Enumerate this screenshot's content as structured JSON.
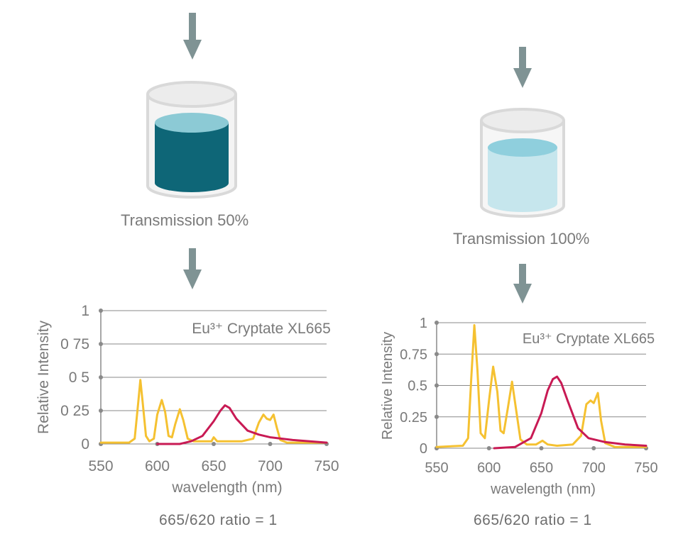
{
  "colors": {
    "arrow": "#7f9394",
    "cup_outline": "#d9d9d9",
    "cup_rim": "#ececec",
    "dark_liquid": "#0e6677",
    "dark_liquid_top": "#8ccad5",
    "light_liquid": "#c6e6ed",
    "light_liquid_top": "#8fcfdd",
    "donor": "#f5c131",
    "acceptor": "#c81a54",
    "grid": "#8a8a8a",
    "text": "#7a7a7a"
  },
  "icons": [
    "down-arrow-icon",
    "beaker-icon"
  ],
  "panels": [
    {
      "transmission_label": "Transmission 50%",
      "liquid_level": 0.78,
      "ratio_label": "665/620 ratio = 1",
      "chart_legend": "Eu³⁺ Cryptate XL665"
    },
    {
      "transmission_label": "Transmission 100%",
      "liquid_level": 0.78,
      "ratio_label": "665/620 ratio = 1",
      "chart_legend": "Eu³⁺ Cryptate XL665"
    }
  ],
  "chart_data": [
    {
      "type": "line",
      "ylabel": "Relative Intensity",
      "xlabel": "wavelength (nm)",
      "annotation": "Eu³⁺ Cryptate XL665",
      "xlim": [
        550,
        750
      ],
      "ylim": [
        0,
        1
      ],
      "x_ticks": [
        "550",
        "600",
        "650",
        "700",
        "750"
      ],
      "y_ticks": [
        "0",
        "0 25",
        "0 5",
        "0 75",
        "1"
      ],
      "grid": true,
      "series": [
        {
          "color": "#f5c131",
          "points": [
            [
              550,
              0.01
            ],
            [
              575,
              0.01
            ],
            [
              580,
              0.04
            ],
            [
              583,
              0.3
            ],
            [
              585,
              0.48
            ],
            [
              587,
              0.32
            ],
            [
              590,
              0.06
            ],
            [
              593,
              0.02
            ],
            [
              597,
              0.04
            ],
            [
              600,
              0.22
            ],
            [
              604,
              0.33
            ],
            [
              607,
              0.24
            ],
            [
              610,
              0.06
            ],
            [
              613,
              0.05
            ],
            [
              616,
              0.15
            ],
            [
              620,
              0.26
            ],
            [
              623,
              0.18
            ],
            [
              627,
              0.04
            ],
            [
              632,
              0.02
            ],
            [
              640,
              0.02
            ],
            [
              648,
              0.02
            ],
            [
              650,
              0.05
            ],
            [
              653,
              0.02
            ],
            [
              660,
              0.02
            ],
            [
              675,
              0.02
            ],
            [
              685,
              0.04
            ],
            [
              690,
              0.16
            ],
            [
              694,
              0.22
            ],
            [
              697,
              0.19
            ],
            [
              700,
              0.18
            ],
            [
              703,
              0.22
            ],
            [
              706,
              0.12
            ],
            [
              709,
              0.03
            ],
            [
              715,
              0.01
            ],
            [
              750,
              0.01
            ]
          ]
        },
        {
          "color": "#c81a54",
          "points": [
            [
              600,
              0.0
            ],
            [
              620,
              0.0
            ],
            [
              630,
              0.02
            ],
            [
              640,
              0.06
            ],
            [
              650,
              0.17
            ],
            [
              656,
              0.25
            ],
            [
              660,
              0.29
            ],
            [
              664,
              0.27
            ],
            [
              670,
              0.19
            ],
            [
              680,
              0.1
            ],
            [
              690,
              0.07
            ],
            [
              700,
              0.05
            ],
            [
              720,
              0.03
            ],
            [
              750,
              0.01
            ]
          ]
        }
      ]
    },
    {
      "type": "line",
      "ylabel": "Relative Intensity",
      "xlabel": "wavelength (nm)",
      "annotation": "Eu³⁺ Cryptate XL665",
      "xlim": [
        550,
        750
      ],
      "ylim": [
        0,
        1
      ],
      "x_ticks": [
        "550",
        "600",
        "650",
        "700",
        "750"
      ],
      "y_ticks": [
        "0",
        "0.25",
        "0.5",
        "0.75",
        "1"
      ],
      "grid": true,
      "series": [
        {
          "color": "#f5c131",
          "points": [
            [
              550,
              0.01
            ],
            [
              575,
              0.02
            ],
            [
              580,
              0.08
            ],
            [
              583,
              0.55
            ],
            [
              586,
              0.98
            ],
            [
              589,
              0.62
            ],
            [
              592,
              0.12
            ],
            [
              596,
              0.08
            ],
            [
              600,
              0.38
            ],
            [
              604,
              0.65
            ],
            [
              608,
              0.45
            ],
            [
              611,
              0.14
            ],
            [
              614,
              0.12
            ],
            [
              618,
              0.32
            ],
            [
              622,
              0.53
            ],
            [
              626,
              0.3
            ],
            [
              630,
              0.07
            ],
            [
              636,
              0.03
            ],
            [
              645,
              0.03
            ],
            [
              651,
              0.06
            ],
            [
              656,
              0.03
            ],
            [
              665,
              0.02
            ],
            [
              680,
              0.03
            ],
            [
              688,
              0.1
            ],
            [
              693,
              0.35
            ],
            [
              697,
              0.38
            ],
            [
              700,
              0.36
            ],
            [
              704,
              0.44
            ],
            [
              707,
              0.22
            ],
            [
              711,
              0.04
            ],
            [
              720,
              0.01
            ],
            [
              750,
              0.01
            ]
          ]
        },
        {
          "color": "#c81a54",
          "points": [
            [
              605,
              0.0
            ],
            [
              625,
              0.01
            ],
            [
              640,
              0.08
            ],
            [
              650,
              0.28
            ],
            [
              656,
              0.46
            ],
            [
              661,
              0.55
            ],
            [
              665,
              0.57
            ],
            [
              669,
              0.52
            ],
            [
              675,
              0.38
            ],
            [
              685,
              0.16
            ],
            [
              695,
              0.08
            ],
            [
              710,
              0.05
            ],
            [
              730,
              0.03
            ],
            [
              750,
              0.02
            ]
          ]
        }
      ]
    }
  ]
}
